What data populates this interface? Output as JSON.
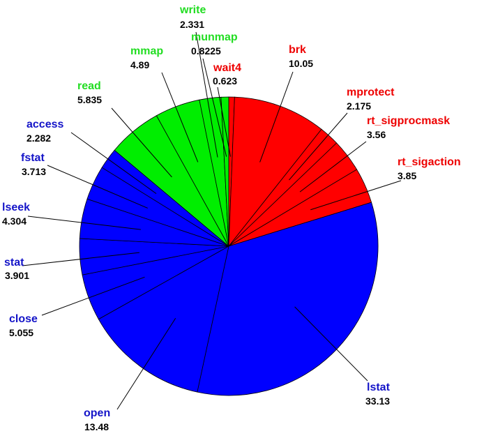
{
  "chart_data": {
    "type": "pie",
    "start_angle_deg": 90,
    "direction": "clockwise",
    "slices": [
      {
        "label": "wait4",
        "value": 0.623,
        "value_text": "0.623",
        "color": "#ff0000"
      },
      {
        "label": "brk",
        "value": 10.05,
        "value_text": "10.05",
        "color": "#ff0000"
      },
      {
        "label": "mprotect",
        "value": 2.175,
        "value_text": "2.175",
        "color": "#ff0000"
      },
      {
        "label": "rt_sigprocmask",
        "value": 3.56,
        "value_text": "3.56",
        "color": "#ff0000"
      },
      {
        "label": "rt_sigaction",
        "value": 3.85,
        "value_text": "3.85",
        "color": "#ff0000"
      },
      {
        "label": "lstat",
        "value": 33.13,
        "value_text": "33.13",
        "color": "#0000ff"
      },
      {
        "label": "open",
        "value": 13.48,
        "value_text": "13.48",
        "color": "#0000ff"
      },
      {
        "label": "close",
        "value": 5.055,
        "value_text": "5.055",
        "color": "#0000ff"
      },
      {
        "label": "stat",
        "value": 3.901,
        "value_text": "3.901",
        "color": "#0000ff"
      },
      {
        "label": "lseek",
        "value": 4.304,
        "value_text": "4.304",
        "color": "#0000ff"
      },
      {
        "label": "fstat",
        "value": 3.713,
        "value_text": "3.713",
        "color": "#0000ff"
      },
      {
        "label": "access",
        "value": 2.282,
        "value_text": "2.282",
        "color": "#0000ff"
      },
      {
        "label": "read",
        "value": 5.835,
        "value_text": "5.835",
        "color": "#00ee00"
      },
      {
        "label": "mmap",
        "value": 4.89,
        "value_text": "4.89",
        "color": "#00ee00"
      },
      {
        "label": "write",
        "value": 2.331,
        "value_text": "2.331",
        "color": "#00ee00"
      },
      {
        "label": "munmap",
        "value": 0.8225,
        "value_text": "0.8225",
        "color": "#00ee00"
      }
    ],
    "label_text_colors": {
      "red": "#ee0000",
      "blue": "#1414c8",
      "green": "#22dd22"
    }
  }
}
